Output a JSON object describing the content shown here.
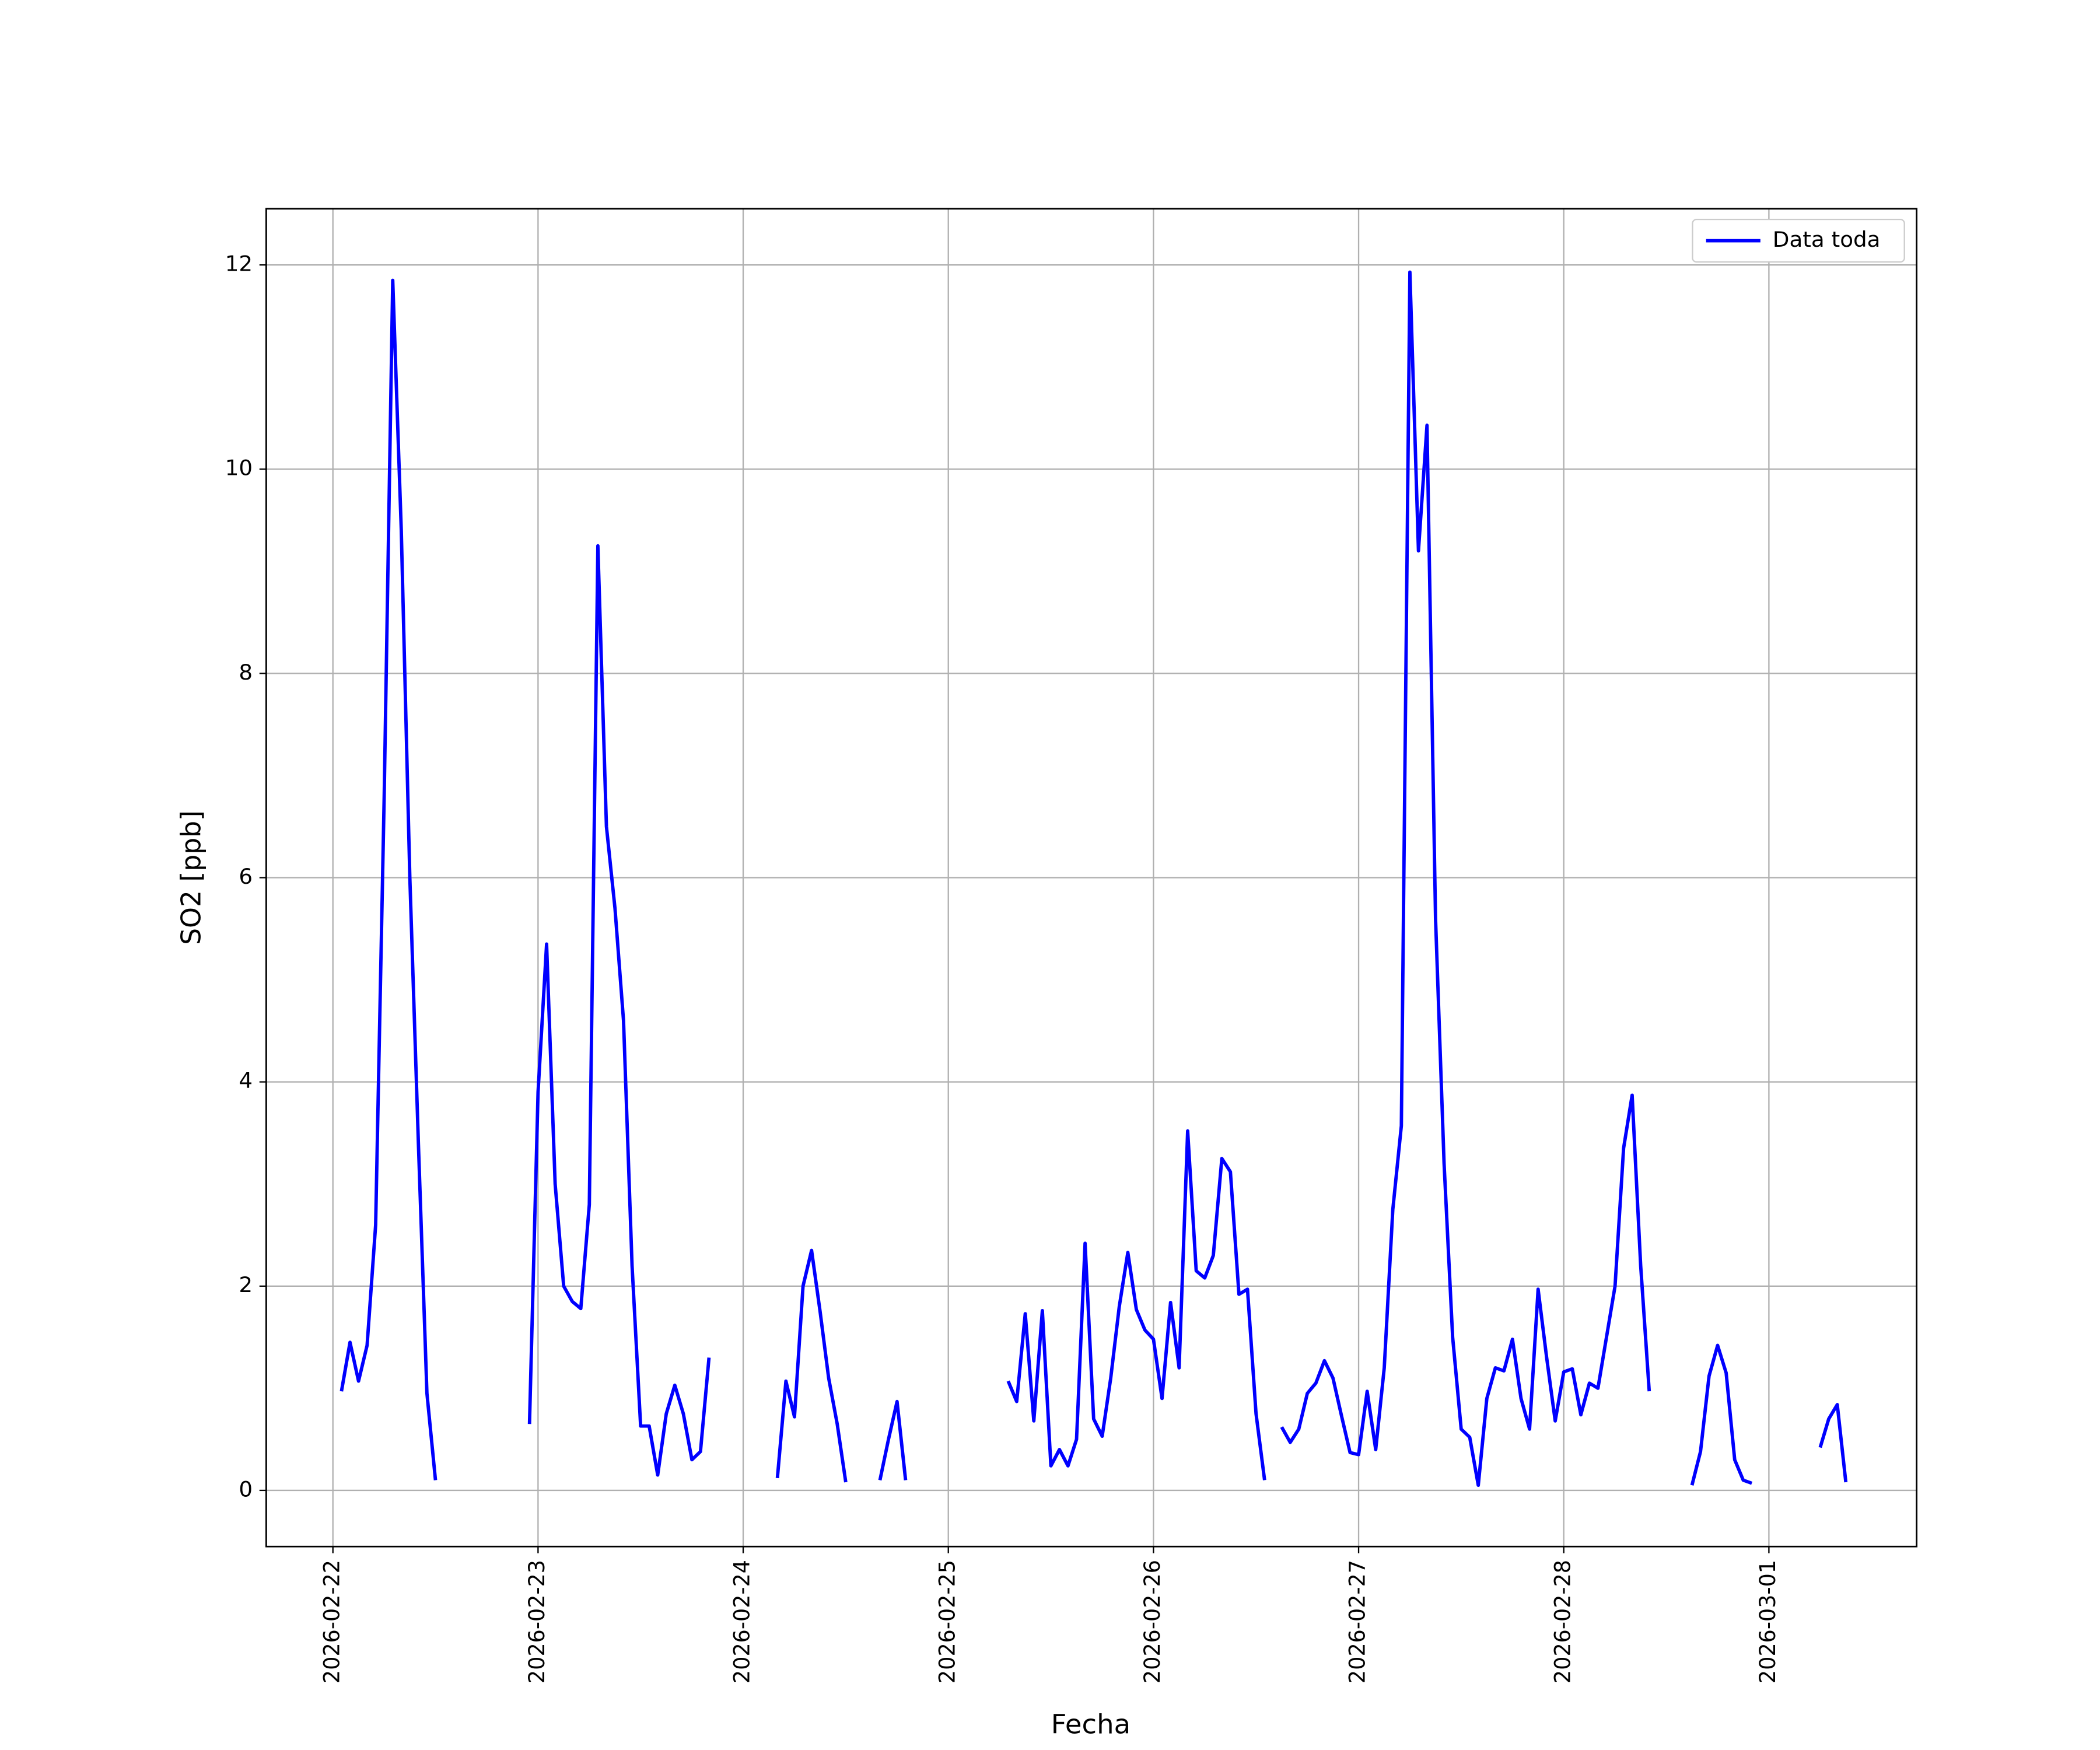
{
  "chart_data": {
    "type": "line",
    "xlabel": "Fecha",
    "ylabel": "SO2 [ppb]",
    "x": [
      "2026-02-22T01:00",
      "2026-02-22T02:00",
      "2026-02-22T03:00",
      "2026-02-22T04:00",
      "2026-02-22T05:00",
      "2026-02-22T06:00",
      "2026-02-22T07:00",
      "2026-02-22T08:00",
      "2026-02-22T09:00",
      "2026-02-22T10:00",
      "2026-02-22T11:00",
      "2026-02-22T12:00",
      "2026-02-22T13:00",
      "2026-02-22T23:00",
      "2026-02-23T00:00",
      "2026-02-23T01:00",
      "2026-02-23T02:00",
      "2026-02-23T03:00",
      "2026-02-23T04:00",
      "2026-02-23T05:00",
      "2026-02-23T06:00",
      "2026-02-23T07:00",
      "2026-02-23T08:00",
      "2026-02-23T09:00",
      "2026-02-23T10:00",
      "2026-02-23T11:00",
      "2026-02-23T12:00",
      "2026-02-23T13:00",
      "2026-02-23T14:00",
      "2026-02-23T15:00",
      "2026-02-23T16:00",
      "2026-02-23T17:00",
      "2026-02-23T18:00",
      "2026-02-23T19:00",
      "2026-02-23T20:00",
      "2026-02-23T21:00",
      "2026-02-24T04:00",
      "2026-02-24T05:00",
      "2026-02-24T06:00",
      "2026-02-24T07:00",
      "2026-02-24T08:00",
      "2026-02-24T09:00",
      "2026-02-24T10:00",
      "2026-02-24T11:00",
      "2026-02-24T12:00",
      "2026-02-24T13:00",
      "2026-02-24T16:00",
      "2026-02-24T17:00",
      "2026-02-24T18:00",
      "2026-02-24T19:00",
      "2026-02-24T20:00",
      "2026-02-25T07:00",
      "2026-02-25T08:00",
      "2026-02-25T09:00",
      "2026-02-25T10:00",
      "2026-02-25T11:00",
      "2026-02-25T12:00",
      "2026-02-25T13:00",
      "2026-02-25T14:00",
      "2026-02-25T15:00",
      "2026-02-25T16:00",
      "2026-02-25T17:00",
      "2026-02-25T18:00",
      "2026-02-25T19:00",
      "2026-02-25T20:00",
      "2026-02-25T21:00",
      "2026-02-25T22:00",
      "2026-02-25T23:00",
      "2026-02-26T00:00",
      "2026-02-26T01:00",
      "2026-02-26T02:00",
      "2026-02-26T03:00",
      "2026-02-26T04:00",
      "2026-02-26T05:00",
      "2026-02-26T06:00",
      "2026-02-26T07:00",
      "2026-02-26T08:00",
      "2026-02-26T09:00",
      "2026-02-26T10:00",
      "2026-02-26T11:00",
      "2026-02-26T12:00",
      "2026-02-26T13:00",
      "2026-02-26T14:00",
      "2026-02-26T15:00",
      "2026-02-26T16:00",
      "2026-02-26T17:00",
      "2026-02-26T18:00",
      "2026-02-26T19:00",
      "2026-02-26T20:00",
      "2026-02-26T21:00",
      "2026-02-26T22:00",
      "2026-02-26T23:00",
      "2026-02-27T00:00",
      "2026-02-27T01:00",
      "2026-02-27T02:00",
      "2026-02-27T03:00",
      "2026-02-27T04:00",
      "2026-02-27T05:00",
      "2026-02-27T06:00",
      "2026-02-27T07:00",
      "2026-02-27T08:00",
      "2026-02-27T09:00",
      "2026-02-27T10:00",
      "2026-02-27T11:00",
      "2026-02-27T12:00",
      "2026-02-27T13:00",
      "2026-02-27T14:00",
      "2026-02-27T15:00",
      "2026-02-27T16:00",
      "2026-02-27T17:00",
      "2026-02-27T18:00",
      "2026-02-27T19:00",
      "2026-02-27T20:00",
      "2026-02-27T21:00",
      "2026-02-27T22:00",
      "2026-02-27T23:00",
      "2026-02-28T00:00",
      "2026-02-28T01:00",
      "2026-02-28T02:00",
      "2026-02-28T03:00",
      "2026-02-28T04:00",
      "2026-02-28T05:00",
      "2026-02-28T06:00",
      "2026-02-28T07:00",
      "2026-02-28T08:00",
      "2026-02-28T09:00",
      "2026-02-28T10:00",
      "2026-02-28T11:00",
      "2026-02-28T15:00",
      "2026-02-28T16:00",
      "2026-02-28T17:00",
      "2026-02-28T18:00",
      "2026-02-28T19:00",
      "2026-02-28T20:00",
      "2026-02-28T21:00",
      "2026-02-28T22:00",
      "2026-02-28T23:00",
      "2026-03-01T06:00",
      "2026-03-01T07:00",
      "2026-03-01T08:00",
      "2026-03-01T09:00"
    ],
    "series": [
      {
        "name": "Data toda",
        "color": "#0000ff",
        "values": [
          0.97,
          1.45,
          1.07,
          1.42,
          2.6,
          6.8,
          11.85,
          9.4,
          6.0,
          3.4,
          0.95,
          0.1,
          null,
          0.65,
          3.9,
          5.35,
          3.0,
          2.0,
          1.85,
          1.78,
          2.8,
          9.25,
          6.5,
          5.7,
          4.6,
          2.2,
          0.63,
          0.63,
          0.15,
          0.75,
          1.03,
          0.75,
          0.3,
          0.38,
          1.3,
          null,
          0.12,
          1.07,
          0.72,
          2.0,
          2.35,
          1.75,
          1.1,
          0.65,
          0.08,
          null,
          0.1,
          0.5,
          0.87,
          0.1,
          null,
          1.07,
          0.87,
          1.73,
          0.68,
          1.76,
          0.24,
          0.4,
          0.24,
          0.5,
          2.42,
          0.7,
          0.53,
          1.1,
          1.8,
          2.33,
          1.77,
          1.57,
          1.48,
          0.9,
          1.84,
          1.2,
          3.52,
          2.15,
          2.08,
          2.3,
          3.25,
          3.12,
          1.92,
          1.97,
          0.75,
          0.1,
          null,
          0.62,
          0.47,
          0.6,
          0.95,
          1.05,
          1.27,
          1.1,
          0.73,
          0.37,
          0.35,
          0.97,
          0.4,
          1.2,
          2.75,
          3.57,
          11.93,
          9.2,
          10.43,
          5.6,
          3.2,
          1.5,
          0.6,
          0.52,
          0.05,
          0.9,
          1.2,
          1.17,
          1.48,
          0.9,
          0.6,
          1.97,
          1.3,
          0.68,
          1.16,
          1.19,
          0.74,
          1.05,
          1.0,
          1.5,
          2.0,
          3.35,
          3.87,
          2.2,
          0.97,
          null,
          0.05,
          0.38,
          1.12,
          1.42,
          1.15,
          0.3,
          0.1,
          0.07,
          null,
          0.42,
          0.7,
          0.84,
          0.08
        ]
      }
    ],
    "xlim": [
      "2026-02-21T16:12",
      "2026-03-01T17:17"
    ],
    "xticks": [
      "2026-02-22",
      "2026-02-23",
      "2026-02-24",
      "2026-02-25",
      "2026-02-26",
      "2026-02-27",
      "2026-02-28",
      "2026-03-01"
    ],
    "ylim": [
      -0.55,
      12.55
    ],
    "yticks": [
      0,
      2,
      4,
      6,
      8,
      10,
      12
    ],
    "grid": true,
    "legend": "upper right"
  }
}
